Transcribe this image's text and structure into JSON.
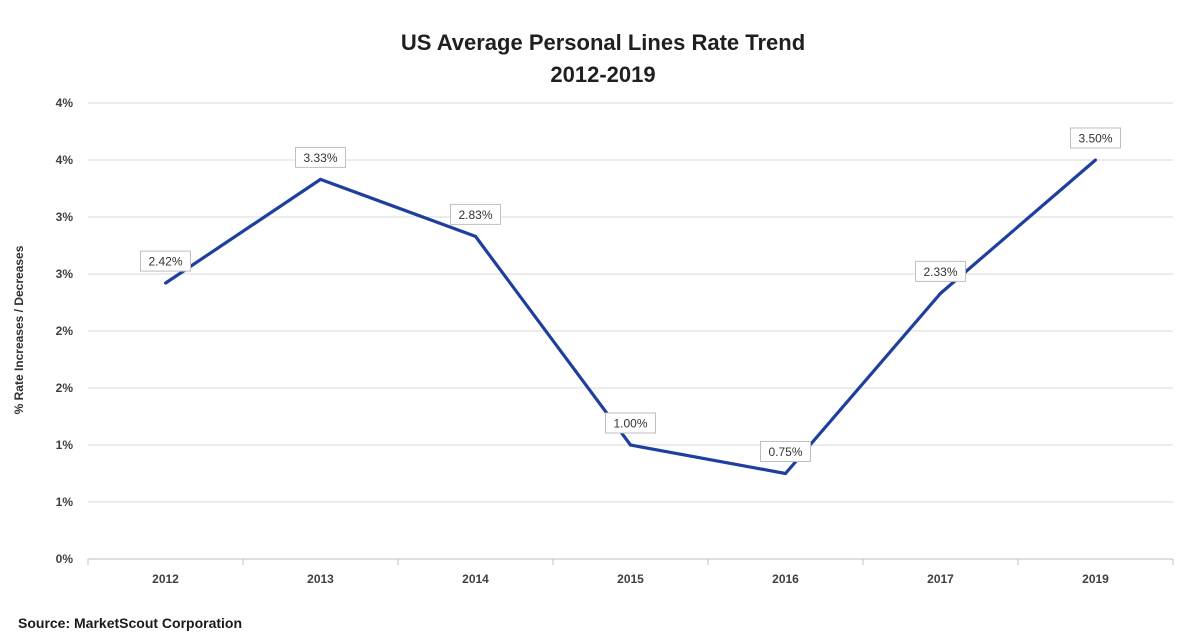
{
  "chart_data": {
    "type": "line",
    "title_line1": "US Average Personal Lines Rate Trend",
    "title_line2": "2012-2019",
    "ylabel": "% Rate Increases / Decreases",
    "categories": [
      "2012",
      "2013",
      "2014",
      "2015",
      "2016",
      "2017",
      "2019"
    ],
    "series": [
      {
        "values": [
          2.42,
          3.33,
          2.83,
          1.0,
          0.75,
          2.33,
          3.5
        ],
        "data_labels": [
          "2.42%",
          "3.33%",
          "2.83%",
          "1.00%",
          "0.75%",
          "2.33%",
          "3.50%"
        ],
        "color": "#1f3f9e"
      }
    ],
    "y_ticks": [
      "0%",
      "1%",
      "1%",
      "2%",
      "2%",
      "3%",
      "3%",
      "4%",
      "4%"
    ],
    "ylim": [
      0,
      4
    ],
    "y_tick_step": 0.5,
    "grid": true,
    "legend": "none"
  },
  "source": "Source:  MarketScout Corporation",
  "colors": {
    "line": "#1f3f9e",
    "grid": "#d9d9d9",
    "axis": "#bfbfbf"
  }
}
